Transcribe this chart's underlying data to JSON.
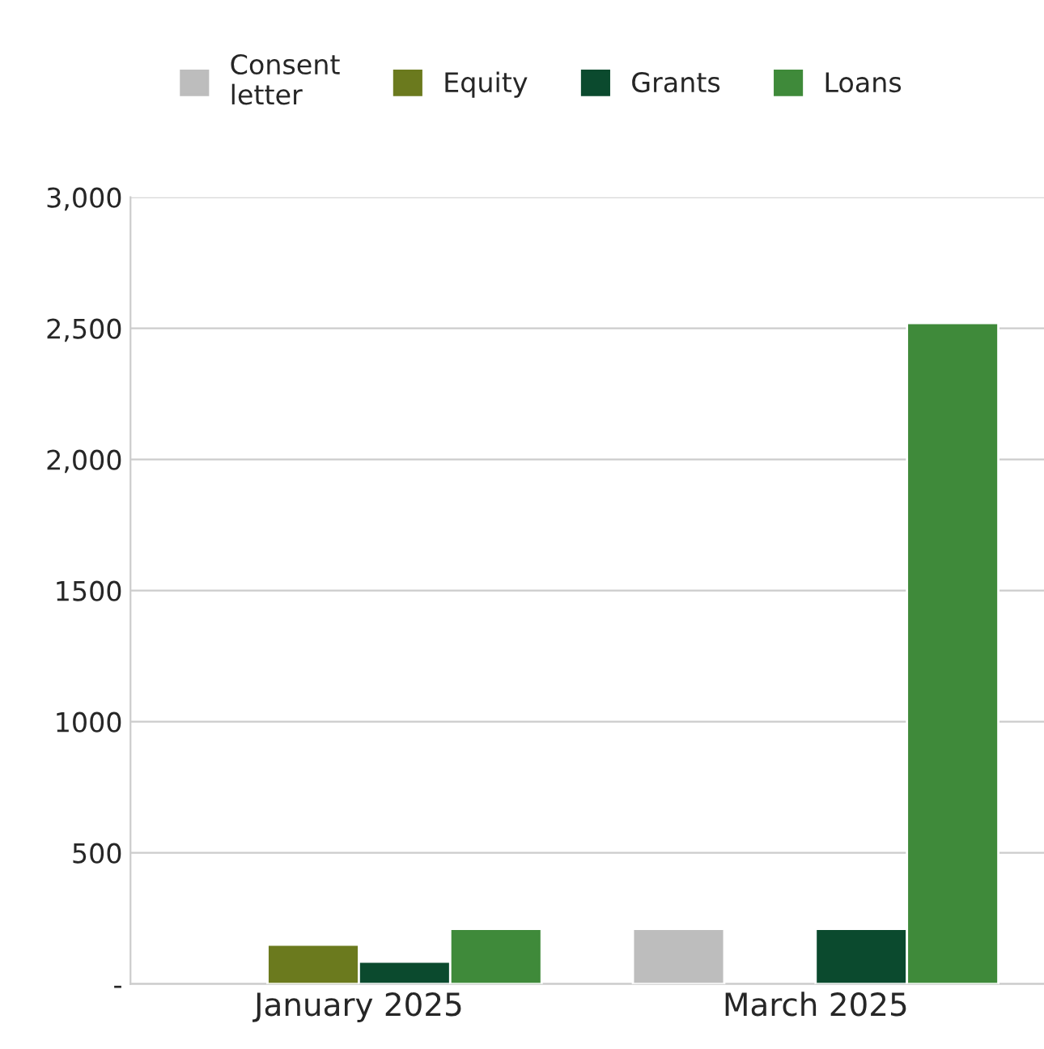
{
  "chart_data": {
    "type": "bar",
    "categories": [
      "January 2025",
      "March 2025"
    ],
    "series": [
      {
        "name": "Consent\nletter",
        "color": "#bdbdbd",
        "values": [
          null,
          210
        ]
      },
      {
        "name": "Equity",
        "color": "#6b7a1e",
        "values": [
          150,
          null
        ]
      },
      {
        "name": "Grants",
        "color": "#0b4a2e",
        "values": [
          85,
          210
        ]
      },
      {
        "name": "Loans",
        "color": "#3f8a3a",
        "values": [
          210,
          2520
        ]
      }
    ],
    "ylim": [
      0,
      3000
    ],
    "yticks": [
      {
        "value": 0,
        "label": "-"
      },
      {
        "value": 500,
        "label": "500"
      },
      {
        "value": 1000,
        "label": "1000"
      },
      {
        "value": 1500,
        "label": "1500"
      },
      {
        "value": 2000,
        "label": "2,000"
      },
      {
        "value": 2500,
        "label": "2,500"
      },
      {
        "value": 3000,
        "label": "3,000"
      }
    ],
    "grid": "y",
    "legend": "top"
  }
}
